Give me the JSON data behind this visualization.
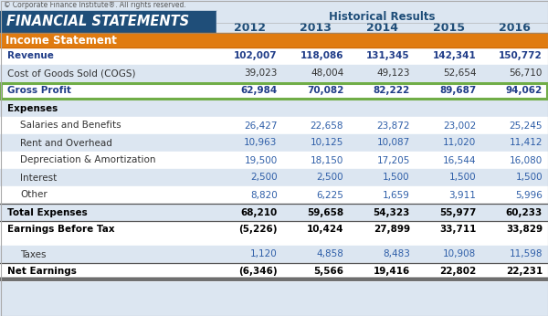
{
  "copyright": "© Corporate Finance Institute®. All rights reserved.",
  "header_left": "FINANCIAL STATEMENTS",
  "header_right": "Historical Results",
  "years": [
    "2012",
    "2013",
    "2014",
    "2015",
    "2016"
  ],
  "section_income": "Income Statement",
  "rows": [
    {
      "label": "Revenue",
      "values": [
        "102,007",
        "118,086",
        "131,345",
        "142,341",
        "150,772"
      ],
      "style": "bold_blue",
      "indent": false
    },
    {
      "label": "Cost of Goods Sold (COGS)",
      "values": [
        "39,023",
        "48,004",
        "49,123",
        "52,654",
        "56,710"
      ],
      "style": "normal",
      "indent": false
    },
    {
      "label": "Gross Profit",
      "values": [
        "62,984",
        "70,082",
        "82,222",
        "89,687",
        "94,062"
      ],
      "style": "bold_blue",
      "indent": false,
      "box": true
    },
    {
      "label": "Expenses",
      "values": [
        "",
        "",
        "",
        "",
        ""
      ],
      "style": "bold_black",
      "indent": false
    },
    {
      "label": "Salaries and Benefits",
      "values": [
        "26,427",
        "22,658",
        "23,872",
        "23,002",
        "25,245"
      ],
      "style": "normal_blue",
      "indent": true
    },
    {
      "label": "Rent and Overhead",
      "values": [
        "10,963",
        "10,125",
        "10,087",
        "11,020",
        "11,412"
      ],
      "style": "normal_blue",
      "indent": true
    },
    {
      "label": "Depreciation & Amortization",
      "values": [
        "19,500",
        "18,150",
        "17,205",
        "16,544",
        "16,080"
      ],
      "style": "normal_blue",
      "indent": true
    },
    {
      "label": "Interest",
      "values": [
        "2,500",
        "2,500",
        "1,500",
        "1,500",
        "1,500"
      ],
      "style": "normal_blue",
      "indent": true
    },
    {
      "label": "Other",
      "values": [
        "8,820",
        "6,225",
        "1,659",
        "3,911",
        "5,996"
      ],
      "style": "normal_blue",
      "indent": true
    },
    {
      "label": "Total Expenses",
      "values": [
        "68,210",
        "59,658",
        "54,323",
        "55,977",
        "60,233"
      ],
      "style": "bold_black",
      "indent": false,
      "topline": true
    },
    {
      "label": "Earnings Before Tax",
      "values": [
        "(5,226)",
        "10,424",
        "27,899",
        "33,711",
        "33,829"
      ],
      "style": "bold_black",
      "indent": false,
      "topline": true
    },
    {
      "label": "",
      "values": [
        "",
        "",
        "",
        "",
        ""
      ],
      "style": "spacer",
      "indent": false
    },
    {
      "label": "Taxes",
      "values": [
        "1,120",
        "4,858",
        "8,483",
        "10,908",
        "11,598"
      ],
      "style": "normal_blue",
      "indent": true
    },
    {
      "label": "Net Earnings",
      "values": [
        "(6,346)",
        "5,566",
        "19,416",
        "22,802",
        "22,231"
      ],
      "style": "bold_black",
      "indent": false,
      "topline": true,
      "doubleline": true
    }
  ],
  "colors": {
    "header_bg": "#1f4e79",
    "header_text": "#ffffff",
    "hist_results_bg": "#dce6f1",
    "year_text": "#1f4e79",
    "income_section_bg": "#e07b10",
    "income_section_text": "#ffffff",
    "bold_blue": "#1f3c88",
    "normal_blue": "#2e5ea8",
    "bold_black": "#000000",
    "normal_black": "#333333",
    "gross_profit_box": "#70ad47",
    "row_white": "#ffffff",
    "row_light": "#dce6f1",
    "outer_bg": "#dce6f1"
  },
  "font_size_copyright": 5.5,
  "font_size_header": 10.5,
  "font_size_hist": 8.5,
  "font_size_year": 9.0,
  "font_size_section": 8.5,
  "font_size_data": 7.5
}
